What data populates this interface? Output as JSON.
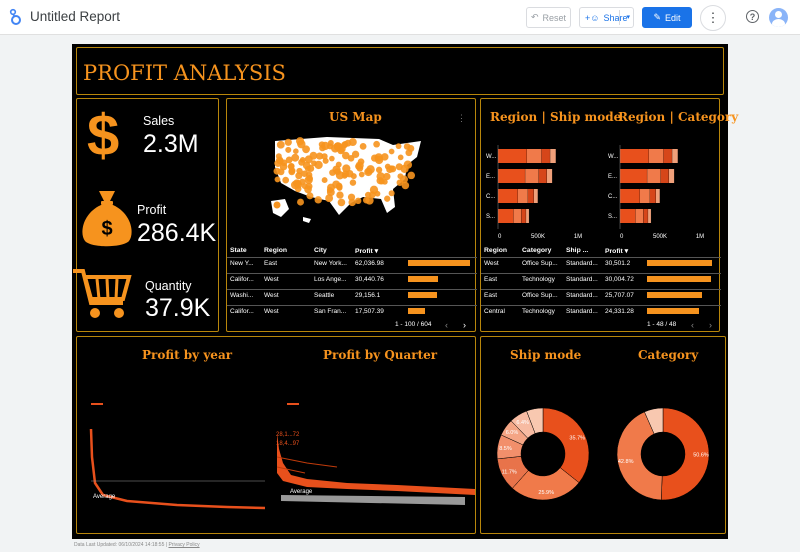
{
  "app": {
    "title": "Untitled Report",
    "reset_label": "Reset",
    "share_label": "Share",
    "edit_label": "Edit"
  },
  "report": {
    "title": "PROFIT ANALYSIS",
    "kpis": {
      "sales": {
        "label": "Sales",
        "value": "2.3M"
      },
      "profit": {
        "label": "Profit",
        "value": "286.4K"
      },
      "quantity": {
        "label": "Quantity",
        "value": "37.9K"
      }
    },
    "map": {
      "title": "US Map",
      "table": {
        "headers": [
          "State",
          "Region",
          "City",
          "Profit ▾"
        ],
        "rows": [
          [
            "New Y...",
            "East",
            "New York...",
            "62,036.98"
          ],
          [
            "Califor...",
            "West",
            "Los Ange...",
            "30,440.76"
          ],
          [
            "Washi...",
            "West",
            "Seattle",
            "29,156.1"
          ],
          [
            "Califor...",
            "West",
            "San Fran...",
            "17,507.39"
          ]
        ],
        "profit_values": [
          62036.98,
          30440.76,
          29156.1,
          17507.39
        ],
        "pager": "1 - 100 / 604"
      }
    },
    "region": {
      "title_ship": "Region | Ship mode",
      "title_category": "Region | Category",
      "ship_chart": {
        "categories": [
          "W...",
          "E...",
          "C...",
          "S..."
        ],
        "axis_ticks": [
          "0",
          "500K",
          "1M"
        ]
      },
      "category_chart": {
        "categories": [
          "W...",
          "E...",
          "C...",
          "S..."
        ],
        "axis_ticks": [
          "0",
          "500K",
          "1M"
        ]
      },
      "table": {
        "headers": [
          "Region",
          "Category",
          "Ship ...",
          "Profit ▾"
        ],
        "rows": [
          [
            "West",
            "Office Sup...",
            "Standard...",
            "30,501.2"
          ],
          [
            "East",
            "Technology",
            "Standard...",
            "30,004.72"
          ],
          [
            "East",
            "Office Sup...",
            "Standard...",
            "25,707.07"
          ],
          [
            "Central",
            "Technology",
            "Standard...",
            "24,331.28"
          ]
        ],
        "profit_values": [
          30501.2,
          30004.72,
          25707.07,
          24331.28
        ],
        "pager": "1 - 48 / 48"
      }
    },
    "trends": {
      "title_year": "Profit by year",
      "title_quarter": "Profit by Quarter",
      "average_label": "Average",
      "quarter_labels": [
        "28,1...72",
        "18,4...97"
      ]
    },
    "donuts": {
      "title_ship": "Ship mode",
      "title_category": "Category",
      "ship_labels": [
        "35.7%",
        "25.9%",
        "11.7%",
        "8.5%",
        "6.0%",
        "6.4%"
      ],
      "category_labels": [
        "50.6%",
        "42.8%"
      ]
    },
    "footer": {
      "last_updated": "Data Last Updated: 06/10/2024 14:18:55",
      "separator": "|",
      "privacy": "Privacy Policy"
    }
  },
  "colors": {
    "accent": "#f6931e",
    "brand_blue": "#1a73e8",
    "dark_orange": "#e8501c"
  },
  "chart_data": [
    {
      "type": "bar",
      "title": "Region | Ship mode",
      "categories": [
        "W...",
        "E...",
        "C...",
        "S..."
      ],
      "values": [
        725000,
        680000,
        500000,
        390000
      ],
      "xlim": [
        0,
        1000000
      ]
    },
    {
      "type": "bar",
      "title": "Region | Category",
      "categories": [
        "W...",
        "E...",
        "C...",
        "S..."
      ],
      "values": [
        725000,
        680000,
        500000,
        390000
      ],
      "xlim": [
        0,
        1000000
      ]
    },
    {
      "type": "pie",
      "title": "Ship mode",
      "labels": [
        "35.7%",
        "25.9%",
        "11.7%",
        "8.5%",
        "6.0%",
        "6.4%"
      ],
      "values": [
        35.7,
        25.9,
        11.7,
        8.5,
        6.0,
        6.4
      ]
    },
    {
      "type": "pie",
      "title": "Category",
      "labels": [
        "50.6%",
        "42.8%"
      ],
      "values": [
        50.6,
        42.8
      ]
    }
  ]
}
